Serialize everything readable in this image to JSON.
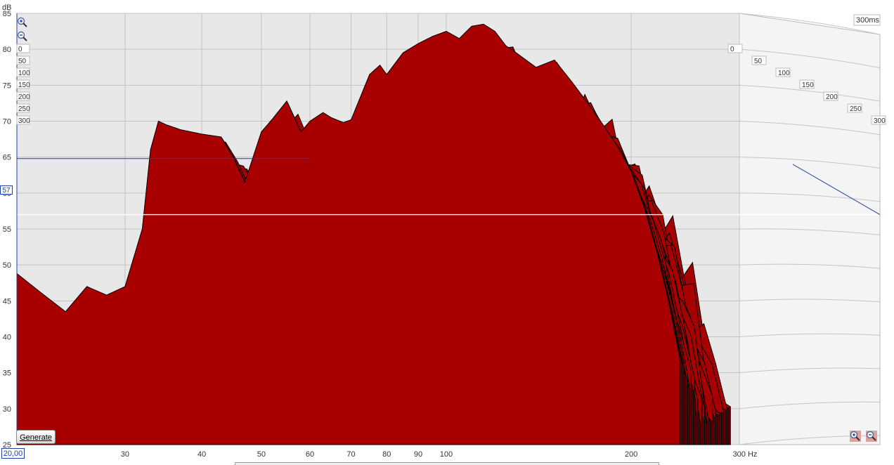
{
  "chart_data": {
    "type": "area",
    "subtype": "waterfall",
    "ylabel": "dB",
    "xunit": "Hz",
    "xscale": "log",
    "xlim": [
      20,
      300
    ],
    "ylim": [
      25,
      85
    ],
    "x_ticks": [
      "30",
      "40",
      "50",
      "60",
      "70",
      "80",
      "90",
      "100",
      "200",
      "300 Hz"
    ],
    "y_ticks": [
      "85",
      "80",
      "75",
      "70",
      "65",
      "60",
      "55",
      "50",
      "45",
      "40",
      "35",
      "30",
      "25"
    ],
    "time_window_label": "300ms",
    "time_ticks": [
      "0",
      "50",
      "100",
      "150",
      "200",
      "250",
      "300"
    ],
    "cursor_value": "57",
    "start_freq": "20,00",
    "fill_color": "#a80000",
    "line_color": "#000000",
    "front_slice": {
      "time_ms": 0,
      "freq_hz": [
        20,
        22,
        24,
        26,
        28,
        30,
        32,
        33,
        34,
        35,
        37,
        40,
        43,
        45,
        47,
        50,
        52,
        55,
        58,
        60,
        63,
        65,
        68,
        70,
        75,
        78,
        80,
        85,
        90,
        95,
        100,
        105,
        110,
        115,
        120,
        125,
        130,
        140,
        150,
        160,
        170,
        180,
        190,
        200,
        210,
        220,
        230,
        240
      ],
      "db": [
        48.8,
        46,
        43.5,
        47,
        45.8,
        47,
        55,
        66,
        70,
        69.5,
        68.8,
        68.2,
        67.8,
        65,
        61.5,
        68.5,
        70.2,
        72.8,
        68.5,
        70,
        71.2,
        70.5,
        69.8,
        70.2,
        76.5,
        77.8,
        76.5,
        79.5,
        80.8,
        81.8,
        82.5,
        81.5,
        83.2,
        83.5,
        82.5,
        80.5,
        79.5,
        77.5,
        78.5,
        75.5,
        72.5,
        69.5,
        66.5,
        63.0,
        58.0,
        52.0,
        45.0,
        37.0
      ]
    }
  },
  "controls": {
    "generate_label": "Generate"
  }
}
